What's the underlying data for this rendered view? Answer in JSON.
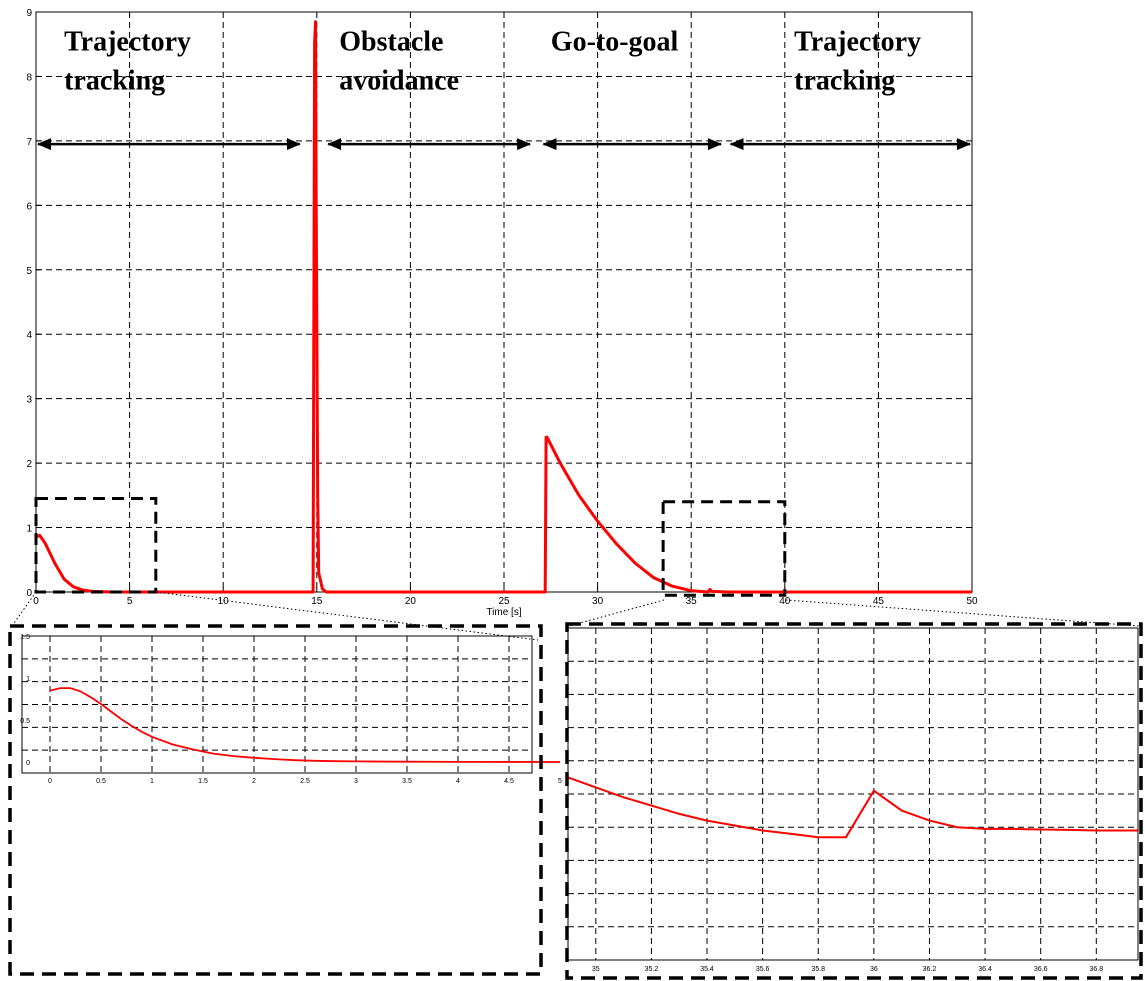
{
  "colors": {
    "series": "#ff0000",
    "grid": "#000000",
    "axis": "#000000"
  },
  "annotation_arrows": [
    {
      "x0": 0,
      "x1": 14.2
    },
    {
      "x0": 15.5,
      "x1": 26.5
    },
    {
      "x0": 27,
      "x1": 36.7
    },
    {
      "x0": 37,
      "x1": 50
    }
  ],
  "chart_data": [
    {
      "type": "line",
      "xlabel": "Time [s]",
      "ylabel": "",
      "xlim": [
        0,
        50
      ],
      "ylim": [
        0,
        9
      ],
      "xticks": [
        "0",
        "5",
        "10",
        "15",
        "20",
        "25",
        "30",
        "35",
        "40",
        "45",
        "50"
      ],
      "yticks": [
        "0",
        "1",
        "2",
        "3",
        "4",
        "5",
        "6",
        "7",
        "8",
        "9"
      ],
      "grid": true,
      "annotations": [
        {
          "text": "Trajectory",
          "x": 1.5,
          "y": 8.4
        },
        {
          "text": "tracking",
          "x": 1.5,
          "y": 7.8
        },
        {
          "text": "Obstacle",
          "x": 16.2,
          "y": 8.4
        },
        {
          "text": "avoidance",
          "x": 16.2,
          "y": 7.8
        },
        {
          "text": "Go-to-goal",
          "x": 27.5,
          "y": 8.4
        },
        {
          "text": "Trajectory",
          "x": 40.5,
          "y": 8.4
        },
        {
          "text": "tracking",
          "x": 40.5,
          "y": 7.8
        }
      ],
      "series": [
        {
          "x": [
            0,
            0.2,
            0.5,
            1,
            1.5,
            2,
            2.5,
            3,
            4,
            6,
            14.8,
            14.88,
            14.93,
            14.97,
            15.05,
            15.1,
            15.3,
            15.5,
            20,
            27.2,
            27.25,
            27.3,
            28,
            29,
            30,
            31,
            32,
            33,
            34,
            35,
            35.9,
            36,
            36.1,
            37,
            50
          ],
          "y": [
            0.85,
            0.88,
            0.75,
            0.45,
            0.2,
            0.08,
            0.03,
            0.01,
            0,
            0,
            0,
            8.5,
            8.85,
            6,
            1.5,
            0.3,
            0.05,
            0,
            0,
            0,
            2.4,
            2.4,
            2.0,
            1.5,
            1.1,
            0.75,
            0.45,
            0.22,
            0.09,
            0.02,
            0,
            0.04,
            0.01,
            0,
            0
          ]
        }
      ]
    },
    {
      "type": "line",
      "xlim": [
        0,
        5
      ],
      "ylim": [
        -0.15,
        1.65
      ],
      "xticks": [
        "0",
        "0.5",
        "1",
        "1.5",
        "2",
        "2.5",
        "3",
        "3.5",
        "4",
        "4.5",
        "5"
      ],
      "yticks": [
        "0",
        "0.5",
        "1",
        "1.5"
      ],
      "grid": true,
      "series": [
        {
          "x": [
            0,
            0.1,
            0.2,
            0.3,
            0.4,
            0.5,
            0.6,
            0.7,
            0.8,
            0.9,
            1.0,
            1.2,
            1.4,
            1.6,
            1.8,
            2.0,
            2.2,
            2.4,
            2.6,
            2.8,
            3.0,
            3.5,
            4.0,
            5.0
          ],
          "y": [
            0.85,
            0.88,
            0.88,
            0.84,
            0.77,
            0.69,
            0.6,
            0.51,
            0.43,
            0.36,
            0.3,
            0.21,
            0.15,
            0.1,
            0.07,
            0.05,
            0.035,
            0.022,
            0.014,
            0.01,
            0.007,
            0.003,
            0.001,
            0
          ]
        }
      ]
    },
    {
      "type": "line",
      "xlim": [
        34.9,
        36.95
      ],
      "ylim": [
        0,
        1
      ],
      "xticks": [
        "35",
        "35.2",
        "35.4",
        "35.6",
        "35.8",
        "36",
        "36.2",
        "36.4",
        "36.6",
        "36.8"
      ],
      "grid": true,
      "series": [
        {
          "x": [
            34.9,
            35.0,
            35.1,
            35.2,
            35.3,
            35.4,
            35.5,
            35.6,
            35.7,
            35.8,
            35.9,
            36.0,
            36.1,
            36.2,
            36.3,
            36.4,
            36.5,
            36.6,
            36.7,
            36.8,
            36.95
          ],
          "y": [
            0.55,
            0.52,
            0.49,
            0.465,
            0.44,
            0.42,
            0.405,
            0.39,
            0.38,
            0.37,
            0.37,
            0.51,
            0.45,
            0.42,
            0.4,
            0.395,
            0.395,
            0.393,
            0.392,
            0.39,
            0.39
          ]
        }
      ]
    }
  ]
}
